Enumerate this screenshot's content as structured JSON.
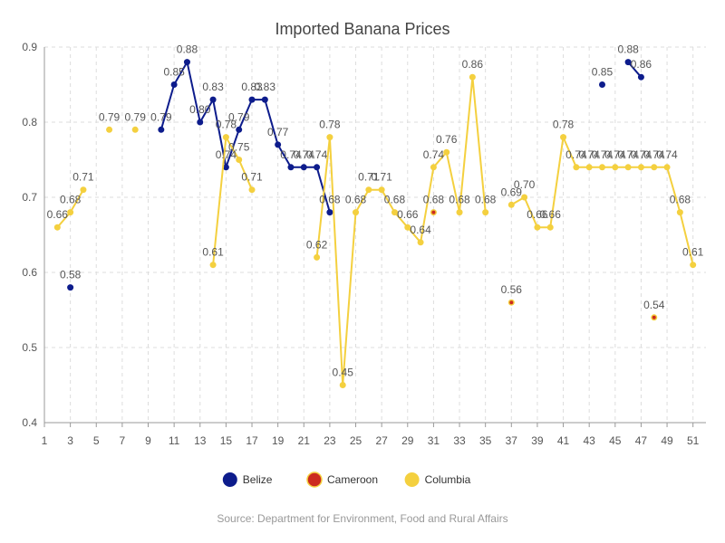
{
  "chart_data": {
    "type": "line",
    "title": "Imported Banana Prices",
    "source": "Source: Department for Environment, Food and Rural Affairs",
    "xlim": [
      1,
      52
    ],
    "ylim": [
      0.4,
      0.9
    ],
    "x_ticks": [
      1,
      3,
      5,
      7,
      9,
      11,
      13,
      15,
      17,
      19,
      21,
      23,
      25,
      27,
      29,
      31,
      33,
      35,
      37,
      39,
      41,
      43,
      45,
      47,
      49,
      51
    ],
    "y_ticks": [
      "0.4",
      "0.5",
      "0.6",
      "0.7",
      "0.8",
      "0.9"
    ],
    "grid": true,
    "legend": "bottom-center",
    "series": [
      {
        "name": "Belize",
        "color": "#0d1c8c",
        "x": [
          3,
          10,
          11,
          12,
          13,
          14,
          15,
          16,
          17,
          18,
          19,
          20,
          21,
          22,
          23,
          44,
          46,
          47
        ],
        "values": [
          0.58,
          0.79,
          0.85,
          0.88,
          0.8,
          0.83,
          0.74,
          0.79,
          0.83,
          0.83,
          0.77,
          0.74,
          0.74,
          0.74,
          0.68,
          0.85,
          0.88,
          0.86
        ],
        "labels": [
          "0.58",
          "0.79",
          "0.85",
          "0.88",
          "0.80",
          "0.83",
          "0.74",
          "0.79",
          "0.83",
          "0.83",
          "0.77",
          "0.74",
          "0.74",
          "0.74",
          "0.68",
          "0.85",
          "0.88",
          "0.86"
        ],
        "segments": [
          [
            10,
            23
          ],
          [
            46,
            47
          ]
        ]
      },
      {
        "name": "Cameroon",
        "color": "#cc2b1f",
        "x": [
          31,
          37,
          48
        ],
        "values": [
          0.68,
          0.56,
          0.54
        ],
        "labels": [
          "0.68",
          "0.56",
          "0.54"
        ],
        "segments": []
      },
      {
        "name": "Columbia",
        "color": "#f4d03f",
        "x": [
          2,
          3,
          4,
          6,
          8,
          14,
          15,
          16,
          17,
          22,
          23,
          24,
          25,
          26,
          27,
          28,
          29,
          30,
          31,
          32,
          33,
          34,
          35,
          37,
          38,
          39,
          40,
          41,
          42,
          43,
          44,
          45,
          46,
          47,
          48,
          49,
          50,
          51
        ],
        "values": [
          0.66,
          0.68,
          0.71,
          0.79,
          0.79,
          0.61,
          0.78,
          0.75,
          0.71,
          0.62,
          0.78,
          0.45,
          0.68,
          0.71,
          0.71,
          0.68,
          0.66,
          0.64,
          0.74,
          0.76,
          0.68,
          0.86,
          0.68,
          0.69,
          0.7,
          0.66,
          0.66,
          0.78,
          0.74,
          0.74,
          0.74,
          0.74,
          0.74,
          0.74,
          0.74,
          0.74,
          0.68,
          0.61
        ],
        "labels": [
          "0.66",
          "0.68",
          "0.71",
          "0.79",
          "0.79",
          "0.61",
          "0.78",
          "0.75",
          "0.71",
          "0.62",
          "0.78",
          "0.45",
          "0.68",
          "0.71",
          "0.71",
          "0.68",
          "0.66",
          "0.64",
          "0.74",
          "0.76",
          "0.68",
          "0.86",
          "0.68",
          "0.69",
          "0.70",
          "0.66",
          "0.66",
          "0.78",
          "0.74",
          "0.74",
          "0.74",
          "0.74",
          "0.74",
          "0.74",
          "0.74",
          "0.74",
          "0.68",
          "0.61"
        ],
        "segments": [
          [
            2,
            4
          ],
          [
            14,
            17
          ],
          [
            22,
            35
          ],
          [
            37,
            51
          ]
        ]
      }
    ]
  }
}
